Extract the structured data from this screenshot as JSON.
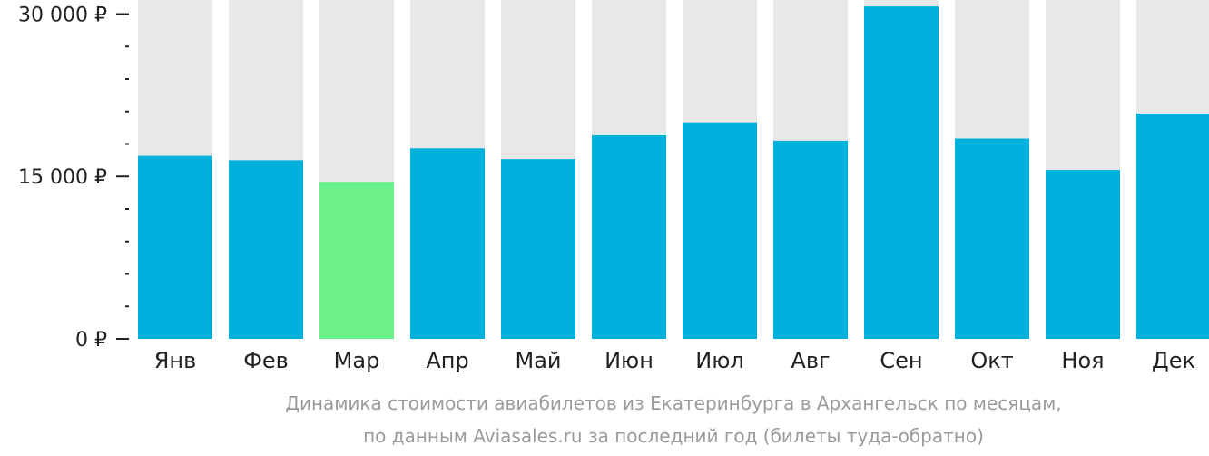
{
  "chart_data": {
    "type": "bar",
    "categories": [
      "Янв",
      "Фев",
      "Мар",
      "Апр",
      "Май",
      "Июн",
      "Июл",
      "Авг",
      "Сен",
      "Окт",
      "Ноя",
      "Дек"
    ],
    "values": [
      16900,
      16500,
      14500,
      17600,
      16600,
      18800,
      20000,
      18300,
      30700,
      18500,
      15600,
      20800
    ],
    "ylim": [
      0,
      31300
    ],
    "yticks": [
      0,
      15000,
      30000
    ],
    "ytick_labels": [
      "0 ₽",
      "15 000 ₽",
      "30 000 ₽"
    ],
    "minor_ticks_between_major": 4,
    "highlight_index": 2,
    "colors": {
      "bar": "#00b0dd",
      "highlight": "#6cf08a",
      "track": "#e8e8e8",
      "axis_text": "#222222",
      "caption": "#9a9a9a"
    },
    "caption_line1": "Динамика стоимости авиабилетов из Екатеринбурга в Архангельск по месяцам,",
    "caption_line2": "по данным Aviasales.ru за последний год (билеты туда-обратно)"
  }
}
